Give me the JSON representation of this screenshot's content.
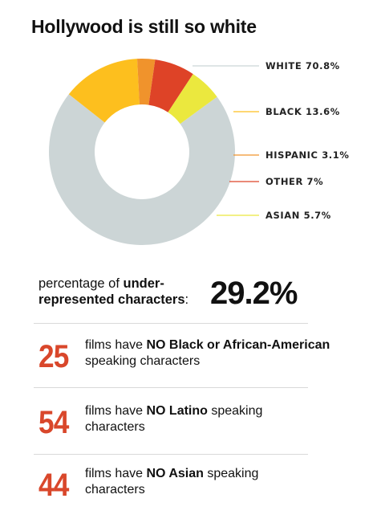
{
  "title": "Hollywood is still so white",
  "chart_data": {
    "type": "pie",
    "donut": true,
    "title": "Hollywood is still so white",
    "slices": [
      {
        "label": "WHITE 70.8%",
        "name": "WHITE",
        "value": 70.8,
        "color": "#ccd5d6"
      },
      {
        "label": "BLACK 13.6%",
        "name": "BLACK",
        "value": 13.6,
        "color": "#fdbf1e"
      },
      {
        "label": "HISPANIC 3.1%",
        "name": "HISPANIC",
        "value": 3.1,
        "color": "#f0932c"
      },
      {
        "label": "OTHER 7%",
        "name": "OTHER",
        "value": 7.0,
        "color": "#de4327"
      },
      {
        "label": "ASIAN 5.7%",
        "name": "ASIAN",
        "value": 5.7,
        "color": "#ebe83e"
      }
    ]
  },
  "stat": {
    "label_plain_1": "percentage of ",
    "label_bold_1": "under-",
    "label_bold_2": "represented characters",
    "label_plain_2": ":",
    "value": "29.2%"
  },
  "facts": [
    {
      "number": "25",
      "pre": "films have ",
      "bold": "NO Black or African-American",
      "post": " speaking characters"
    },
    {
      "number": "54",
      "pre": "films have ",
      "bold": "NO Latino",
      "post": " speaking characters"
    },
    {
      "number": "44",
      "pre": "films have ",
      "bold": "NO Asian",
      "post": " speaking characters"
    }
  ]
}
